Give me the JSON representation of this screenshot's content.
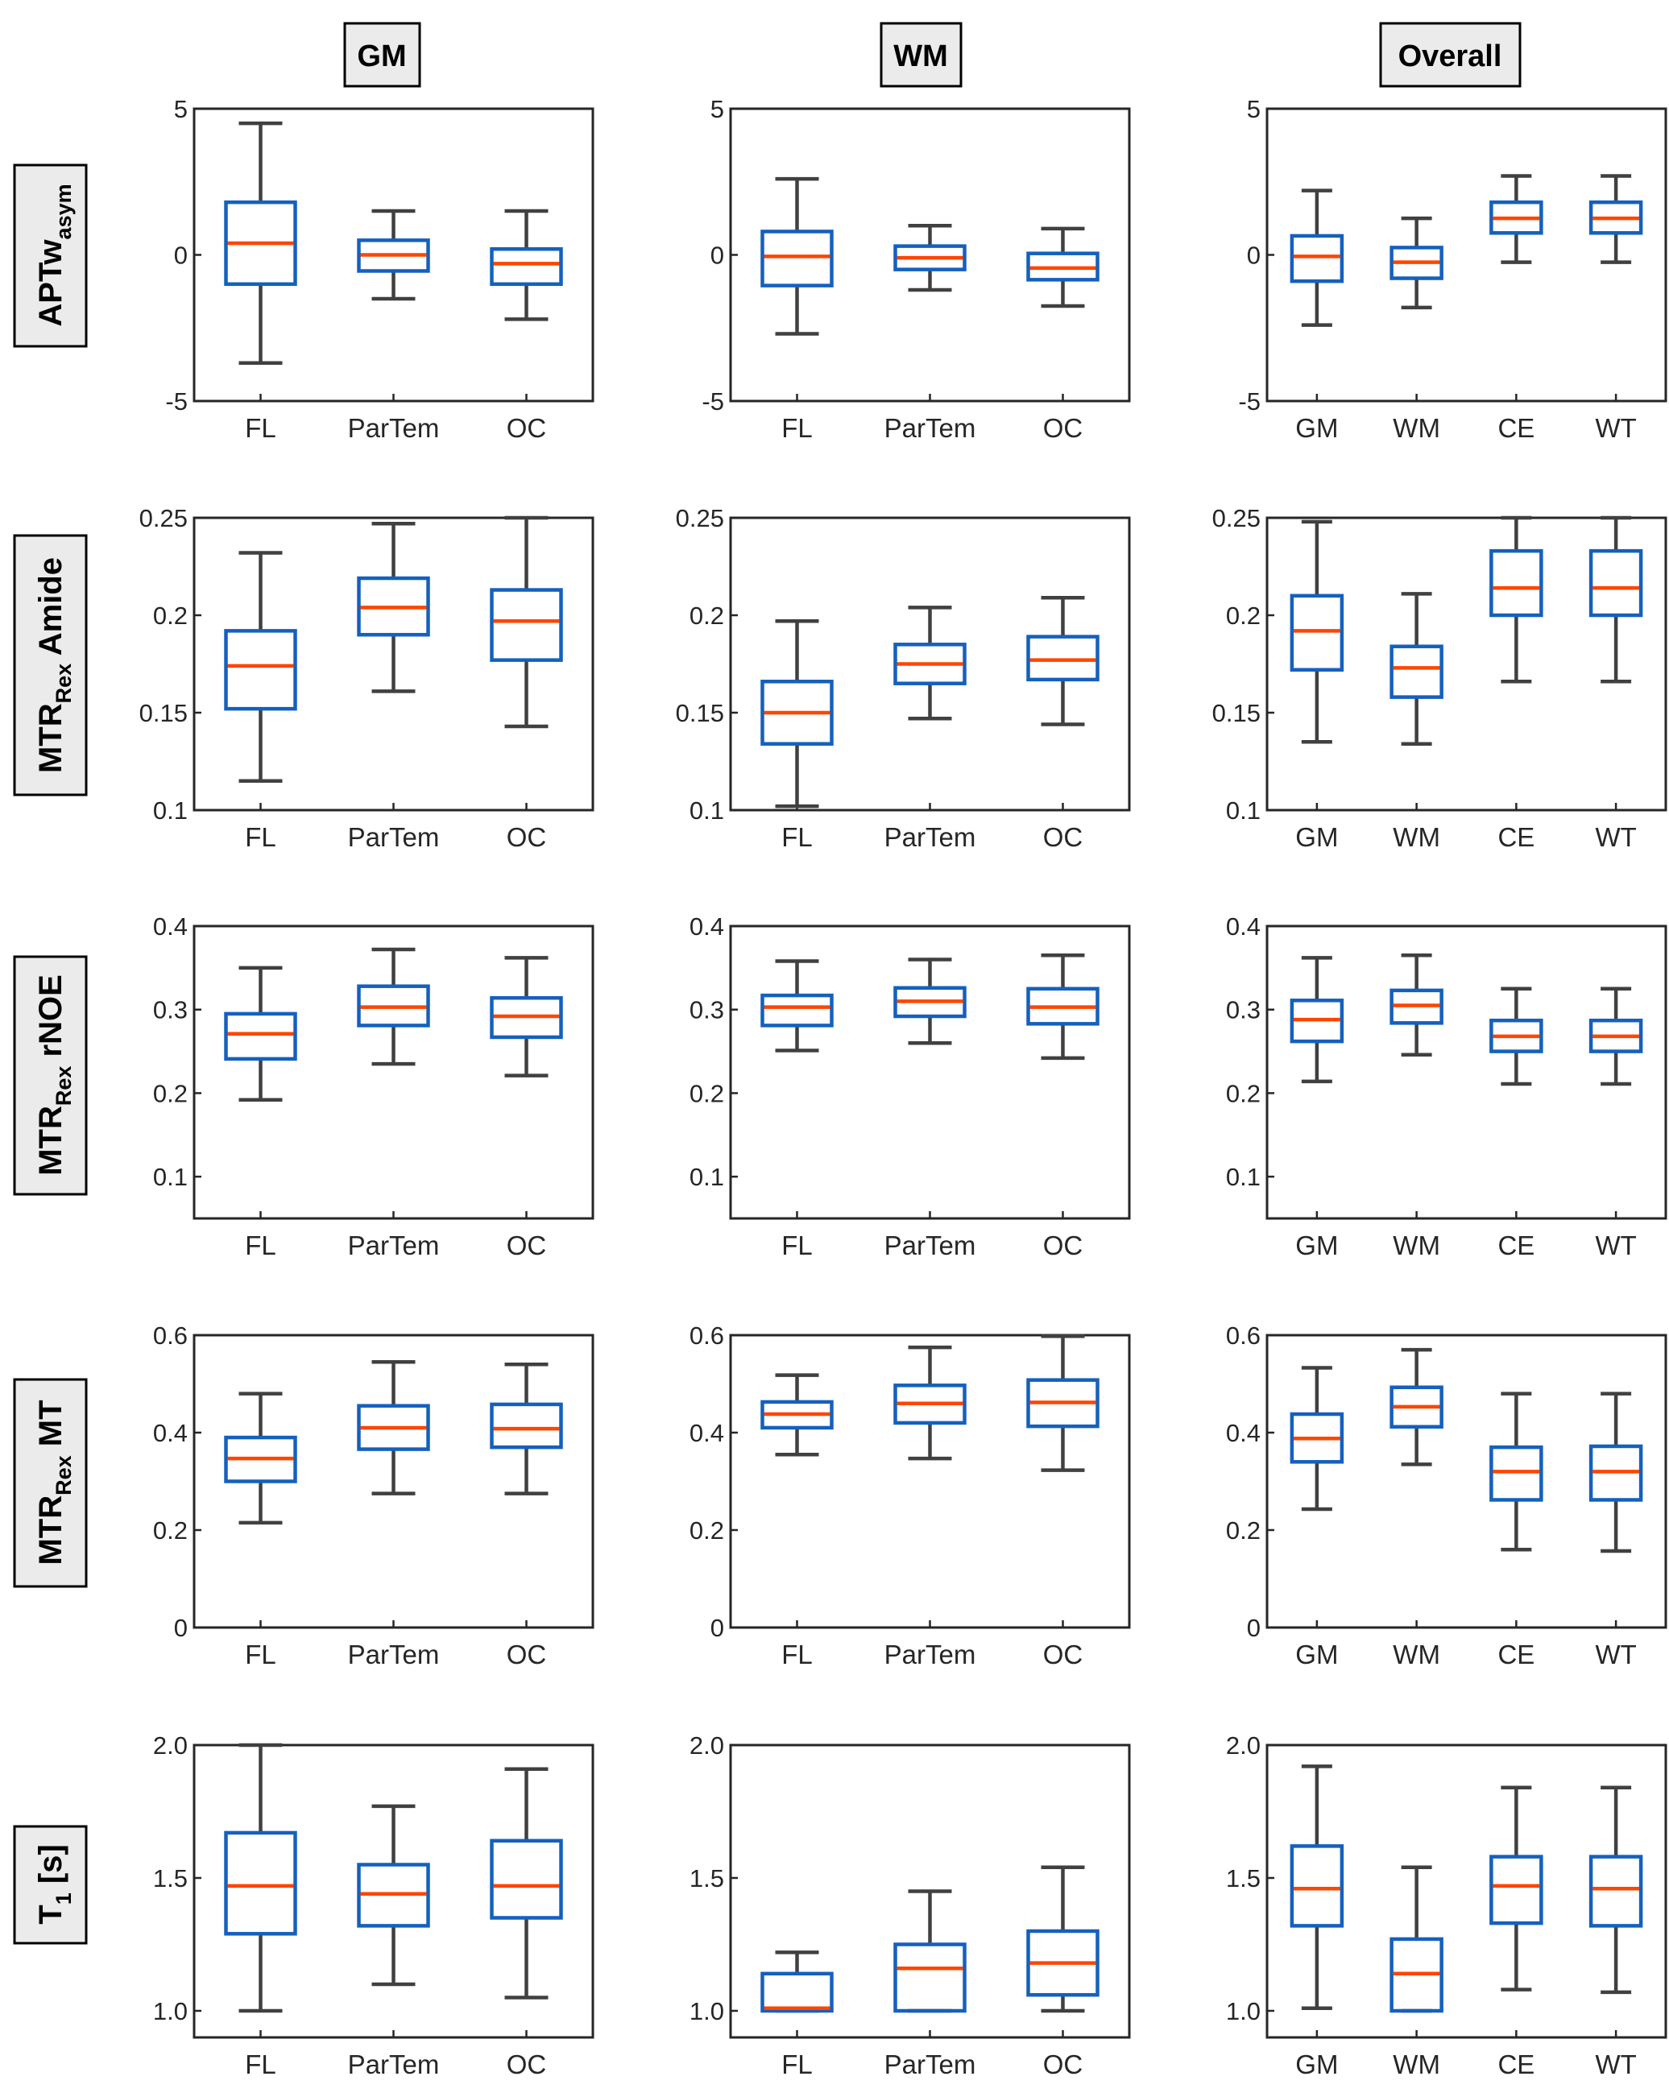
{
  "colors": {
    "box": "#1560bd",
    "median": "#ff4500",
    "whisker": "#404040",
    "axis": "#262626",
    "header_bg": "#ebebeb"
  },
  "column_headers": [
    "GM",
    "WM",
    "Overall"
  ],
  "row_headers": [
    {
      "main": "APTw",
      "sub": "asym",
      "suffix": ""
    },
    {
      "main": "MTR",
      "sub": "Rex",
      "suffix": " Amide"
    },
    {
      "main": "MTR",
      "sub": "Rex",
      "suffix": " rNOE"
    },
    {
      "main": "MTR",
      "sub": "Rex",
      "suffix": " MT"
    },
    {
      "main": "T",
      "sub": "1",
      "suffix": " [s]"
    }
  ],
  "chart_data": [
    {
      "type": "box",
      "row": "APTw asym",
      "column": "GM",
      "ylim": [
        -5,
        5
      ],
      "yticks": [
        "5",
        "0",
        "-5"
      ],
      "ytick_values": [
        5,
        0,
        -5
      ],
      "categories": [
        "FL",
        "ParTem",
        "OC"
      ],
      "boxes": [
        {
          "lw": -3.7,
          "q1": -1.0,
          "med": 0.4,
          "q3": 1.8,
          "uw": 4.5
        },
        {
          "lw": -1.5,
          "q1": -0.55,
          "med": 0.0,
          "q3": 0.5,
          "uw": 1.5
        },
        {
          "lw": -2.2,
          "q1": -1.0,
          "med": -0.3,
          "q3": 0.2,
          "uw": 1.5
        }
      ]
    },
    {
      "type": "box",
      "row": "APTw asym",
      "column": "WM",
      "ylim": [
        -5,
        5
      ],
      "yticks": [
        "5",
        "0",
        "-5"
      ],
      "ytick_values": [
        5,
        0,
        -5
      ],
      "categories": [
        "FL",
        "ParTem",
        "OC"
      ],
      "boxes": [
        {
          "lw": -2.7,
          "q1": -1.05,
          "med": -0.05,
          "q3": 0.8,
          "uw": 2.6
        },
        {
          "lw": -1.2,
          "q1": -0.5,
          "med": -0.1,
          "q3": 0.3,
          "uw": 1.0
        },
        {
          "lw": -1.75,
          "q1": -0.85,
          "med": -0.45,
          "q3": 0.05,
          "uw": 0.9
        }
      ]
    },
    {
      "type": "box",
      "row": "APTw asym",
      "column": "Overall",
      "ylim": [
        -5,
        5
      ],
      "yticks": [
        "5",
        "0",
        "-5"
      ],
      "ytick_values": [
        5,
        0,
        -5
      ],
      "categories": [
        "GM",
        "WM",
        "CE",
        "WT"
      ],
      "boxes": [
        {
          "lw": -2.4,
          "q1": -0.9,
          "med": -0.05,
          "q3": 0.65,
          "uw": 2.2
        },
        {
          "lw": -1.8,
          "q1": -0.8,
          "med": -0.25,
          "q3": 0.25,
          "uw": 1.25
        },
        {
          "lw": -0.25,
          "q1": 0.75,
          "med": 1.25,
          "q3": 1.8,
          "uw": 2.7
        },
        {
          "lw": -0.25,
          "q1": 0.75,
          "med": 1.25,
          "q3": 1.8,
          "uw": 2.7
        }
      ]
    },
    {
      "type": "box",
      "row": "MTRRex Amide",
      "column": "GM",
      "ylim": [
        0.1,
        0.25
      ],
      "yticks": [
        "0.25",
        "0.2",
        "0.15",
        "0.1"
      ],
      "ytick_values": [
        0.25,
        0.2,
        0.15,
        0.1
      ],
      "categories": [
        "FL",
        "ParTem",
        "OC"
      ],
      "boxes": [
        {
          "lw": 0.115,
          "q1": 0.152,
          "med": 0.174,
          "q3": 0.192,
          "uw": 0.232
        },
        {
          "lw": 0.161,
          "q1": 0.19,
          "med": 0.204,
          "q3": 0.219,
          "uw": 0.247
        },
        {
          "lw": 0.143,
          "q1": 0.177,
          "med": 0.197,
          "q3": 0.213,
          "uw": 0.25
        }
      ]
    },
    {
      "type": "box",
      "row": "MTRRex Amide",
      "column": "WM",
      "ylim": [
        0.1,
        0.25
      ],
      "yticks": [
        "0.25",
        "0.2",
        "0.15",
        "0.1"
      ],
      "ytick_values": [
        0.25,
        0.2,
        0.15,
        0.1
      ],
      "categories": [
        "FL",
        "ParTem",
        "OC"
      ],
      "boxes": [
        {
          "lw": 0.102,
          "q1": 0.134,
          "med": 0.15,
          "q3": 0.166,
          "uw": 0.197
        },
        {
          "lw": 0.147,
          "q1": 0.165,
          "med": 0.175,
          "q3": 0.185,
          "uw": 0.204
        },
        {
          "lw": 0.144,
          "q1": 0.167,
          "med": 0.177,
          "q3": 0.189,
          "uw": 0.209
        }
      ]
    },
    {
      "type": "box",
      "row": "MTRRex Amide",
      "column": "Overall",
      "ylim": [
        0.1,
        0.25
      ],
      "yticks": [
        "0.25",
        "0.2",
        "0.15",
        "0.1"
      ],
      "ytick_values": [
        0.25,
        0.2,
        0.15,
        0.1
      ],
      "categories": [
        "GM",
        "WM",
        "CE",
        "WT"
      ],
      "boxes": [
        {
          "lw": 0.135,
          "q1": 0.172,
          "med": 0.192,
          "q3": 0.21,
          "uw": 0.248
        },
        {
          "lw": 0.134,
          "q1": 0.158,
          "med": 0.173,
          "q3": 0.184,
          "uw": 0.211
        },
        {
          "lw": 0.166,
          "q1": 0.2,
          "med": 0.214,
          "q3": 0.233,
          "uw": 0.25
        },
        {
          "lw": 0.166,
          "q1": 0.2,
          "med": 0.214,
          "q3": 0.233,
          "uw": 0.25
        }
      ]
    },
    {
      "type": "box",
      "row": "MTRRex rNOE",
      "column": "GM",
      "ylim": [
        0.05,
        0.4
      ],
      "yticks": [
        "0.4",
        "0.3",
        "0.2",
        "0.1"
      ],
      "ytick_values": [
        0.4,
        0.3,
        0.2,
        0.1
      ],
      "categories": [
        "FL",
        "ParTem",
        "OC"
      ],
      "boxes": [
        {
          "lw": 0.192,
          "q1": 0.241,
          "med": 0.271,
          "q3": 0.295,
          "uw": 0.35
        },
        {
          "lw": 0.235,
          "q1": 0.281,
          "med": 0.303,
          "q3": 0.328,
          "uw": 0.372
        },
        {
          "lw": 0.221,
          "q1": 0.267,
          "med": 0.292,
          "q3": 0.314,
          "uw": 0.362
        }
      ]
    },
    {
      "type": "box",
      "row": "MTRRex rNOE",
      "column": "WM",
      "ylim": [
        0.05,
        0.4
      ],
      "yticks": [
        "0.4",
        "0.3",
        "0.2",
        "0.1"
      ],
      "ytick_values": [
        0.4,
        0.3,
        0.2,
        0.1
      ],
      "categories": [
        "FL",
        "ParTem",
        "OC"
      ],
      "boxes": [
        {
          "lw": 0.251,
          "q1": 0.281,
          "med": 0.303,
          "q3": 0.317,
          "uw": 0.358
        },
        {
          "lw": 0.26,
          "q1": 0.292,
          "med": 0.31,
          "q3": 0.326,
          "uw": 0.36
        },
        {
          "lw": 0.242,
          "q1": 0.283,
          "med": 0.303,
          "q3": 0.325,
          "uw": 0.365
        }
      ]
    },
    {
      "type": "box",
      "row": "MTRRex rNOE",
      "column": "Overall",
      "ylim": [
        0.05,
        0.4
      ],
      "yticks": [
        "0.4",
        "0.3",
        "0.2",
        "0.1"
      ],
      "ytick_values": [
        0.4,
        0.3,
        0.2,
        0.1
      ],
      "categories": [
        "GM",
        "WM",
        "CE",
        "WT"
      ],
      "boxes": [
        {
          "lw": 0.214,
          "q1": 0.262,
          "med": 0.288,
          "q3": 0.311,
          "uw": 0.362
        },
        {
          "lw": 0.246,
          "q1": 0.284,
          "med": 0.305,
          "q3": 0.323,
          "uw": 0.365
        },
        {
          "lw": 0.211,
          "q1": 0.25,
          "med": 0.268,
          "q3": 0.287,
          "uw": 0.325
        },
        {
          "lw": 0.211,
          "q1": 0.25,
          "med": 0.268,
          "q3": 0.287,
          "uw": 0.325
        }
      ]
    },
    {
      "type": "box",
      "row": "MTRRex MT",
      "column": "GM",
      "ylim": [
        0,
        0.6
      ],
      "yticks": [
        "0.6",
        "0.4",
        "0.2",
        "0"
      ],
      "ytick_values": [
        0.6,
        0.4,
        0.2,
        0
      ],
      "categories": [
        "FL",
        "ParTem",
        "OC"
      ],
      "boxes": [
        {
          "lw": 0.215,
          "q1": 0.3,
          "med": 0.347,
          "q3": 0.39,
          "uw": 0.48
        },
        {
          "lw": 0.275,
          "q1": 0.366,
          "med": 0.41,
          "q3": 0.455,
          "uw": 0.545
        },
        {
          "lw": 0.275,
          "q1": 0.37,
          "med": 0.408,
          "q3": 0.458,
          "uw": 0.54
        }
      ]
    },
    {
      "type": "box",
      "row": "MTRRex MT",
      "column": "WM",
      "ylim": [
        0,
        0.6
      ],
      "yticks": [
        "0.6",
        "0.4",
        "0.2",
        "0"
      ],
      "ytick_values": [
        0.6,
        0.4,
        0.2,
        0
      ],
      "categories": [
        "FL",
        "ParTem",
        "OC"
      ],
      "boxes": [
        {
          "lw": 0.355,
          "q1": 0.41,
          "med": 0.438,
          "q3": 0.463,
          "uw": 0.518
        },
        {
          "lw": 0.347,
          "q1": 0.42,
          "med": 0.46,
          "q3": 0.497,
          "uw": 0.575
        },
        {
          "lw": 0.323,
          "q1": 0.413,
          "med": 0.462,
          "q3": 0.508,
          "uw": 0.598
        }
      ]
    },
    {
      "type": "box",
      "row": "MTRRex MT",
      "column": "Overall",
      "ylim": [
        0,
        0.6
      ],
      "yticks": [
        "0.6",
        "0.4",
        "0.2",
        "0"
      ],
      "ytick_values": [
        0.6,
        0.4,
        0.2,
        0
      ],
      "categories": [
        "GM",
        "WM",
        "CE",
        "WT"
      ],
      "boxes": [
        {
          "lw": 0.243,
          "q1": 0.34,
          "med": 0.388,
          "q3": 0.438,
          "uw": 0.533
        },
        {
          "lw": 0.335,
          "q1": 0.412,
          "med": 0.453,
          "q3": 0.493,
          "uw": 0.57
        },
        {
          "lw": 0.16,
          "q1": 0.262,
          "med": 0.32,
          "q3": 0.37,
          "uw": 0.48
        },
        {
          "lw": 0.157,
          "q1": 0.262,
          "med": 0.32,
          "q3": 0.372,
          "uw": 0.48
        }
      ]
    },
    {
      "type": "box",
      "row": "T1 [s]",
      "column": "GM",
      "ylim": [
        0.9,
        2.0
      ],
      "yticks": [
        "2.0",
        "1.5",
        "1.0"
      ],
      "ytick_values": [
        2.0,
        1.5,
        1.0
      ],
      "categories": [
        "FL",
        "ParTem",
        "OC"
      ],
      "boxes": [
        {
          "lw": 1.0,
          "q1": 1.29,
          "med": 1.47,
          "q3": 1.67,
          "uw": 2.0
        },
        {
          "lw": 1.1,
          "q1": 1.32,
          "med": 1.44,
          "q3": 1.55,
          "uw": 1.77
        },
        {
          "lw": 1.05,
          "q1": 1.35,
          "med": 1.47,
          "q3": 1.64,
          "uw": 1.91
        }
      ]
    },
    {
      "type": "box",
      "row": "T1 [s]",
      "column": "WM",
      "ylim": [
        0.9,
        2.0
      ],
      "yticks": [
        "2.0",
        "1.5",
        "1.0"
      ],
      "ytick_values": [
        2.0,
        1.5,
        1.0
      ],
      "categories": [
        "FL",
        "ParTem",
        "OC"
      ],
      "boxes": [
        {
          "lw": 1.0,
          "q1": 1.0,
          "med": 1.01,
          "q3": 1.14,
          "uw": 1.22
        },
        {
          "lw": 1.0,
          "q1": 1.0,
          "med": 1.16,
          "q3": 1.25,
          "uw": 1.45
        },
        {
          "lw": 1.0,
          "q1": 1.06,
          "med": 1.18,
          "q3": 1.3,
          "uw": 1.54
        }
      ]
    },
    {
      "type": "box",
      "row": "T1 [s]",
      "column": "Overall",
      "ylim": [
        0.9,
        2.0
      ],
      "yticks": [
        "2.0",
        "1.5",
        "1.0"
      ],
      "ytick_values": [
        2.0,
        1.5,
        1.0
      ],
      "categories": [
        "GM",
        "WM",
        "CE",
        "WT"
      ],
      "boxes": [
        {
          "lw": 1.01,
          "q1": 1.32,
          "med": 1.46,
          "q3": 1.62,
          "uw": 1.92
        },
        {
          "lw": 1.0,
          "q1": 1.0,
          "med": 1.14,
          "q3": 1.27,
          "uw": 1.54
        },
        {
          "lw": 1.08,
          "q1": 1.33,
          "med": 1.47,
          "q3": 1.58,
          "uw": 1.84
        },
        {
          "lw": 1.07,
          "q1": 1.32,
          "med": 1.46,
          "q3": 1.58,
          "uw": 1.84
        }
      ]
    }
  ]
}
